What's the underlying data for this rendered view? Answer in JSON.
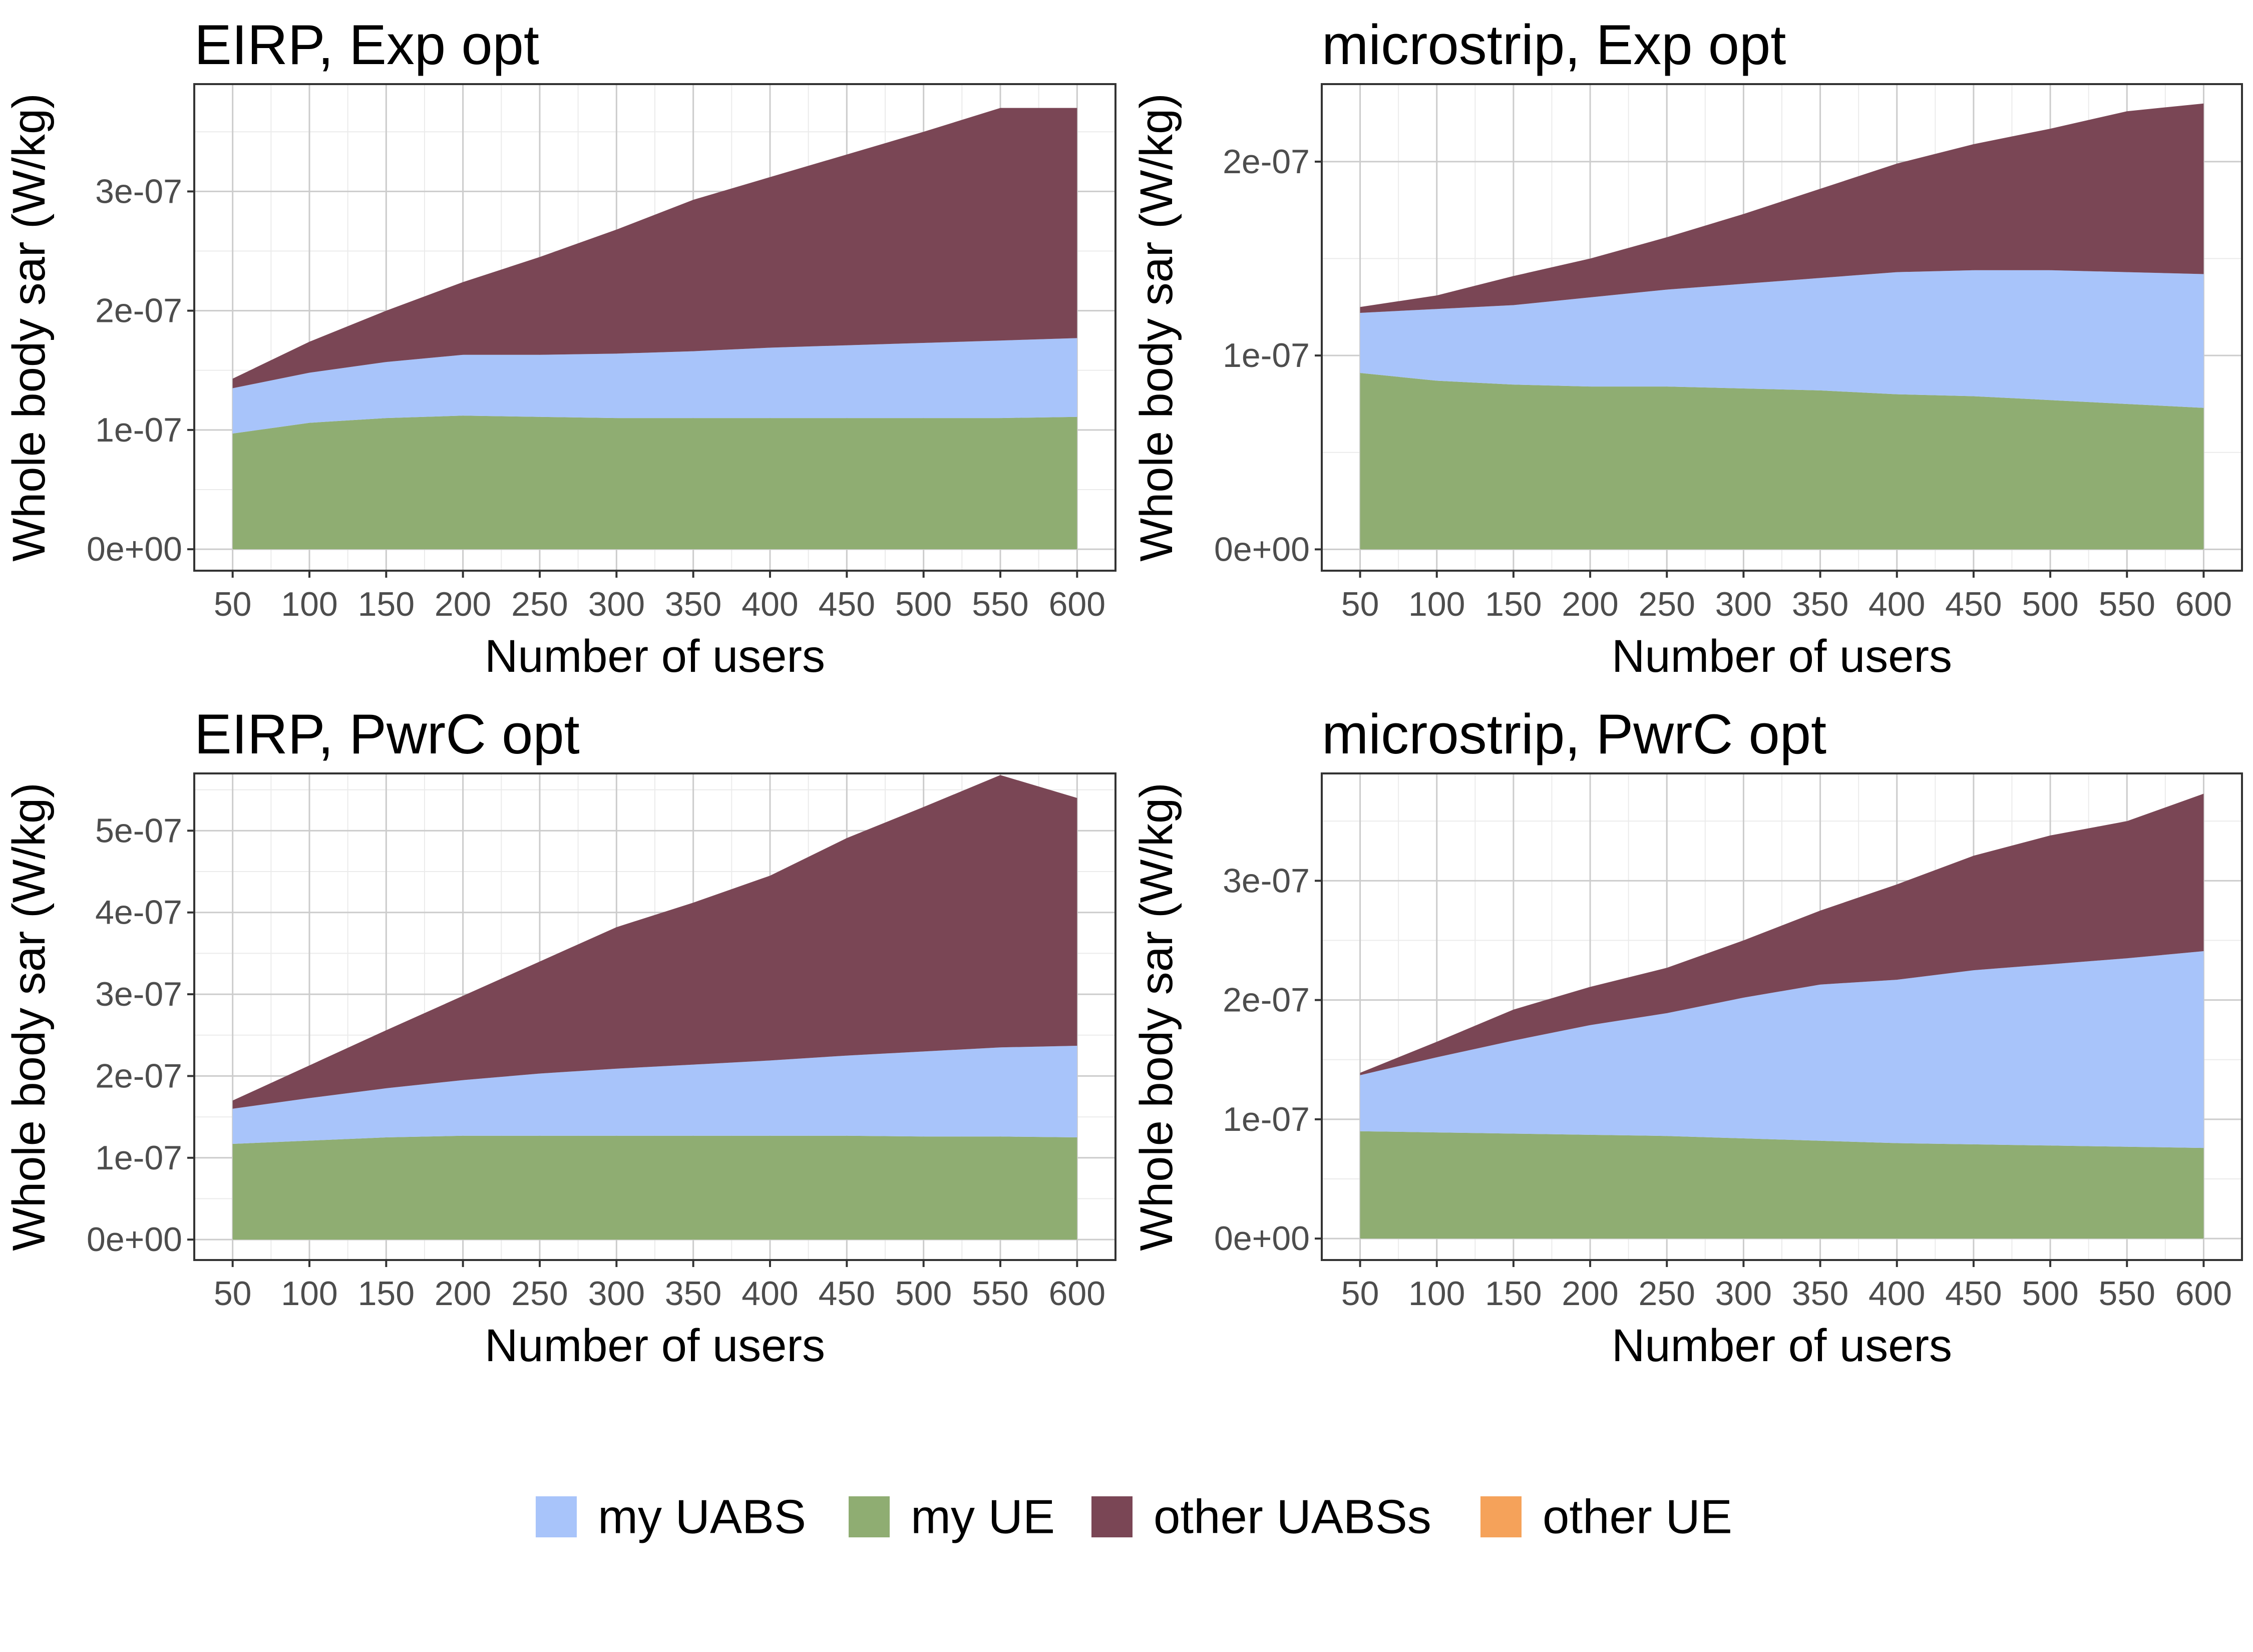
{
  "legend": {
    "items": [
      {
        "label": "my UABS",
        "color": "#a8c4fa"
      },
      {
        "label": "my UE",
        "color": "#8fad72"
      },
      {
        "label": "other UABSs",
        "color": "#7a4655"
      },
      {
        "label": "other UE",
        "color": "#f5a25a"
      }
    ]
  },
  "chart_data": [
    {
      "type": "area",
      "stacked": true,
      "title": "EIRP, Exp opt",
      "xlabel": "Number of users",
      "ylabel": "Whole body sar (W/kg)",
      "x": [
        50,
        100,
        150,
        200,
        250,
        300,
        350,
        400,
        450,
        500,
        550,
        600
      ],
      "xlim": [
        25,
        625
      ],
      "ylim": [
        -1.8e-08,
        3.9e-07
      ],
      "y_ticks": [
        0,
        1e-07,
        2e-07,
        3e-07
      ],
      "y_tick_labels": [
        "0e+00",
        "1e-07",
        "2e-07",
        "3e-07"
      ],
      "x_tick_labels": [
        "50",
        "100",
        "150",
        "200",
        "250",
        "300",
        "350",
        "400",
        "450",
        "500",
        "550",
        "600"
      ],
      "grid": true,
      "series": [
        {
          "name": "my UE",
          "values": [
            9.7e-08,
            1.06e-07,
            1.1e-07,
            1.12e-07,
            1.11e-07,
            1.1e-07,
            1.1e-07,
            1.1e-07,
            1.1e-07,
            1.1e-07,
            1.1e-07,
            1.11e-07
          ]
        },
        {
          "name": "my UABS",
          "values": [
            3.8e-08,
            4.2e-08,
            4.7e-08,
            5.1e-08,
            5.2e-08,
            5.4e-08,
            5.6e-08,
            5.9e-08,
            6.1e-08,
            6.3e-08,
            6.5e-08,
            6.6e-08
          ]
        },
        {
          "name": "other UABSs",
          "values": [
            8e-09,
            2.6e-08,
            4.3e-08,
            6.1e-08,
            8.2e-08,
            1.04e-07,
            1.27e-07,
            1.43e-07,
            1.6e-07,
            1.77e-07,
            1.95e-07,
            1.93e-07
          ]
        },
        {
          "name": "other UE",
          "values": [
            0,
            0,
            0,
            0,
            0,
            0,
            0,
            0,
            0,
            0,
            0,
            0
          ]
        }
      ]
    },
    {
      "type": "area",
      "stacked": true,
      "title": "microstrip, Exp opt",
      "xlabel": "Number of users",
      "ylabel": "Whole body sar (W/kg)",
      "x": [
        50,
        100,
        150,
        200,
        250,
        300,
        350,
        400,
        450,
        500,
        550,
        600
      ],
      "xlim": [
        25,
        625
      ],
      "ylim": [
        -1.1e-08,
        2.4e-07
      ],
      "y_ticks": [
        0,
        1e-07,
        2e-07
      ],
      "y_tick_labels": [
        "0e+00",
        "1e-07",
        "2e-07"
      ],
      "x_tick_labels": [
        "50",
        "100",
        "150",
        "200",
        "250",
        "300",
        "350",
        "400",
        "450",
        "500",
        "550",
        "600"
      ],
      "grid": true,
      "series": [
        {
          "name": "my UE",
          "values": [
            9.1e-08,
            8.7e-08,
            8.5e-08,
            8.4e-08,
            8.4e-08,
            8.3e-08,
            8.2e-08,
            8e-08,
            7.9e-08,
            7.7e-08,
            7.5e-08,
            7.3e-08
          ]
        },
        {
          "name": "my UABS",
          "values": [
            3.1e-08,
            3.7e-08,
            4.1e-08,
            4.6e-08,
            5e-08,
            5.4e-08,
            5.8e-08,
            6.3e-08,
            6.5e-08,
            6.7e-08,
            6.8e-08,
            6.9e-08
          ]
        },
        {
          "name": "other UABSs",
          "values": [
            3e-09,
            7e-09,
            1.5e-08,
            2e-08,
            2.7e-08,
            3.6e-08,
            4.6e-08,
            5.6e-08,
            6.5e-08,
            7.3e-08,
            8.3e-08,
            8.8e-08
          ]
        },
        {
          "name": "other UE",
          "values": [
            0,
            0,
            0,
            0,
            0,
            0,
            0,
            0,
            0,
            0,
            0,
            0
          ]
        }
      ]
    },
    {
      "type": "area",
      "stacked": true,
      "title": "EIRP, PwrC opt",
      "xlabel": "Number of users",
      "ylabel": "Whole body sar (W/kg)",
      "x": [
        50,
        100,
        150,
        200,
        250,
        300,
        350,
        400,
        450,
        500,
        550,
        600
      ],
      "xlim": [
        25,
        625
      ],
      "ylim": [
        -2.5e-08,
        5.7e-07
      ],
      "y_ticks": [
        0,
        1e-07,
        2e-07,
        3e-07,
        4e-07,
        5e-07
      ],
      "y_tick_labels": [
        "0e+00",
        "1e-07",
        "2e-07",
        "3e-07",
        "4e-07",
        "5e-07"
      ],
      "x_tick_labels": [
        "50",
        "100",
        "150",
        "200",
        "250",
        "300",
        "350",
        "400",
        "450",
        "500",
        "550",
        "600"
      ],
      "grid": true,
      "series": [
        {
          "name": "my UE",
          "values": [
            1.17e-07,
            1.21e-07,
            1.25e-07,
            1.27e-07,
            1.27e-07,
            1.27e-07,
            1.27e-07,
            1.27e-07,
            1.27e-07,
            1.26e-07,
            1.26e-07,
            1.25e-07
          ]
        },
        {
          "name": "my UABS",
          "values": [
            4.3e-08,
            5.2e-08,
            6e-08,
            6.8e-08,
            7.6e-08,
            8.2e-08,
            8.7e-08,
            9.2e-08,
            9.8e-08,
            1.04e-07,
            1.09e-07,
            1.12e-07
          ]
        },
        {
          "name": "other UABSs",
          "values": [
            1e-08,
            4e-08,
            7.1e-08,
            1.03e-07,
            1.37e-07,
            1.73e-07,
            1.98e-07,
            2.26e-07,
            2.66e-07,
            2.99e-07,
            3.33e-07,
            3.03e-07
          ]
        },
        {
          "name": "other UE",
          "values": [
            0,
            0,
            0,
            0,
            0,
            0,
            0,
            0,
            0,
            0,
            0,
            0
          ]
        }
      ]
    },
    {
      "type": "area",
      "stacked": true,
      "title": "microstrip, PwrC opt",
      "xlabel": "Number of users",
      "ylabel": "Whole body sar (W/kg)",
      "x": [
        50,
        100,
        150,
        200,
        250,
        300,
        350,
        400,
        450,
        500,
        550,
        600
      ],
      "xlim": [
        25,
        625
      ],
      "ylim": [
        -1.8e-08,
        3.9e-07
      ],
      "y_ticks": [
        0,
        1e-07,
        2e-07,
        3e-07
      ],
      "y_tick_labels": [
        "0e+00",
        "1e-07",
        "2e-07",
        "3e-07"
      ],
      "x_tick_labels": [
        "50",
        "100",
        "150",
        "200",
        "250",
        "300",
        "350",
        "400",
        "450",
        "500",
        "550",
        "600"
      ],
      "grid": true,
      "series": [
        {
          "name": "my UE",
          "values": [
            9e-08,
            8.9e-08,
            8.8e-08,
            8.7e-08,
            8.6e-08,
            8.4e-08,
            8.2e-08,
            8e-08,
            7.9e-08,
            7.8e-08,
            7.7e-08,
            7.6e-08
          ]
        },
        {
          "name": "my UABS",
          "values": [
            4.7e-08,
            6.3e-08,
            7.8e-08,
            9.2e-08,
            1.03e-07,
            1.18e-07,
            1.31e-07,
            1.37e-07,
            1.46e-07,
            1.52e-07,
            1.58e-07,
            1.65e-07
          ]
        },
        {
          "name": "other UABSs",
          "values": [
            2e-09,
            1.3e-08,
            2.6e-08,
            3.2e-08,
            3.8e-08,
            4.8e-08,
            6.2e-08,
            8e-08,
            9.6e-08,
            1.08e-07,
            1.15e-07,
            1.32e-07
          ]
        },
        {
          "name": "other UE",
          "values": [
            0,
            0,
            0,
            0,
            0,
            0,
            0,
            0,
            0,
            0,
            0,
            0
          ]
        }
      ]
    }
  ]
}
